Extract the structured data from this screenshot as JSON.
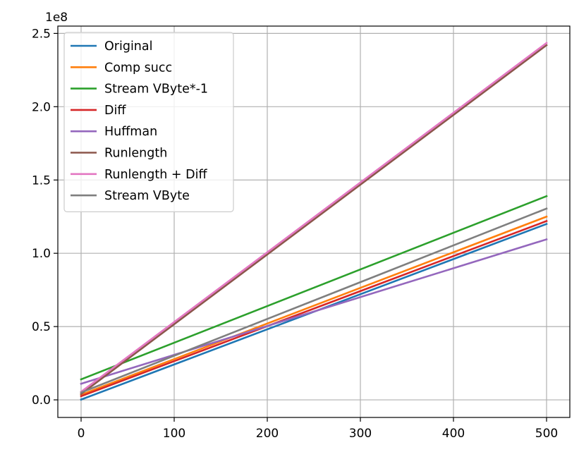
{
  "chart_data": {
    "type": "line",
    "title": "",
    "xlabel": "",
    "ylabel": "",
    "y_offset_text": "1e8",
    "xlim": [
      -25,
      525
    ],
    "ylim": [
      -12000000,
      255000000
    ],
    "xticks": [
      0,
      100,
      200,
      300,
      400,
      500
    ],
    "yticks": [
      0,
      50000000,
      100000000,
      150000000,
      200000000,
      250000000
    ],
    "ytick_labels": [
      "0.0",
      "0.5",
      "1.0",
      "1.5",
      "2.0",
      "2.5"
    ],
    "grid": true,
    "legend_position": "upper-left",
    "series": [
      {
        "name": "Original",
        "color": "#1f77b4",
        "x": [
          0,
          500
        ],
        "y": [
          200000,
          120000000
        ]
      },
      {
        "name": "Comp succ",
        "color": "#ff7f0e",
        "x": [
          0,
          500
        ],
        "y": [
          3500000,
          125000000
        ]
      },
      {
        "name": "Stream VByte*-1",
        "color": "#2ca02c",
        "x": [
          0,
          500
        ],
        "y": [
          14000000,
          139000000
        ]
      },
      {
        "name": "Diff",
        "color": "#d62728",
        "x": [
          0,
          500
        ],
        "y": [
          2500000,
          122000000
        ]
      },
      {
        "name": "Huffman",
        "color": "#9467bd",
        "x": [
          0,
          500
        ],
        "y": [
          11000000,
          109500000
        ]
      },
      {
        "name": "Runlength",
        "color": "#8c564b",
        "x": [
          0,
          500
        ],
        "y": [
          4000000,
          242000000
        ]
      },
      {
        "name": "Runlength + Diff",
        "color": "#e377c2",
        "x": [
          0,
          500
        ],
        "y": [
          5500000,
          243500000
        ]
      },
      {
        "name": "Stream VByte",
        "color": "#7f7f7f",
        "x": [
          0,
          500
        ],
        "y": [
          5000000,
          130500000
        ]
      }
    ]
  }
}
